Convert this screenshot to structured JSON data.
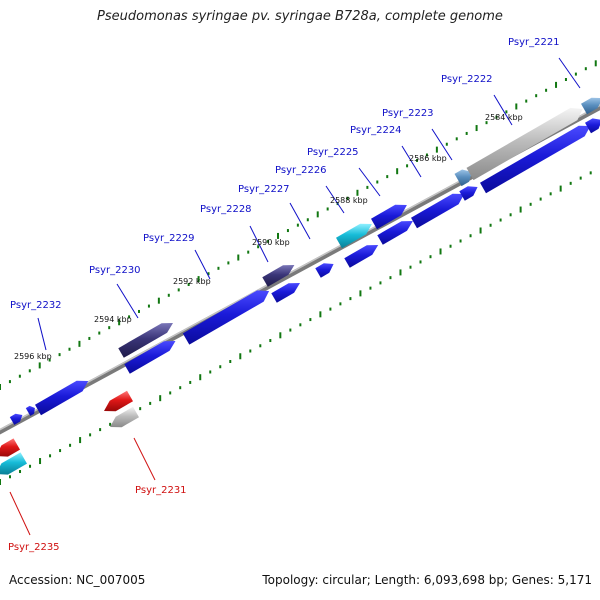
{
  "title": "Pseudomonas syringae pv. syringae B728a, complete genome",
  "footer": {
    "accession": "Accession: NC_007005",
    "topology": "Topology: circular; Length: 6,093,698 bp; Genes: 5,171"
  },
  "colors": {
    "forward_label": "#1010c8",
    "reverse_label": "#d01010",
    "gene_blue": "#1a1ad8",
    "gene_dark_purple": "#3a3578",
    "gene_cyan": "#17bcd8",
    "gene_red": "#e01818",
    "gene_grey": "#bdbdbd",
    "gene_steel": "#5a8fbf",
    "tick_green": "#117711",
    "backbone": "#8a8a8a"
  },
  "scale_labels": [
    "2584 kbp",
    "2586 kbp",
    "2588 kbp",
    "2590 kbp",
    "2592 kbp",
    "2594 kbp",
    "2596 kbp"
  ],
  "gene_labels": {
    "forward": [
      "Psyr_2221",
      "Psyr_2222",
      "Psyr_2223",
      "Psyr_2224",
      "Psyr_2225",
      "Psyr_2226",
      "Psyr_2227",
      "Psyr_2228",
      "Psyr_2229",
      "Psyr_2230",
      "Psyr_2232"
    ],
    "reverse": [
      "Psyr_2231",
      "Psyr_2235"
    ]
  }
}
